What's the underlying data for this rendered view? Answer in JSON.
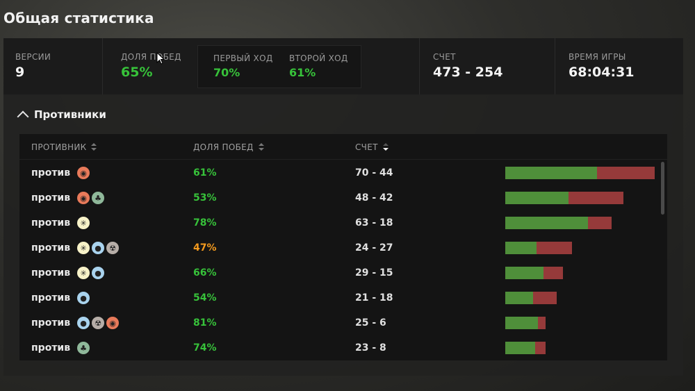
{
  "page": {
    "title": "Общая статистика"
  },
  "stats": {
    "versions": {
      "label": "ВЕРСИИ",
      "value": "9"
    },
    "win_rate": {
      "label": "ДОЛЯ ПОБЕД",
      "value": "65%"
    },
    "first_turn": {
      "label": "ПЕРВЫЙ ХОД",
      "value": "70%"
    },
    "second_turn": {
      "label": "ВТОРОЙ ХОД",
      "value": "61%"
    },
    "score": {
      "label": "СЧЕТ",
      "value": "473 - 254"
    },
    "play_time": {
      "label": "ВРЕМЯ ИГРЫ",
      "value": "68:04:31"
    }
  },
  "opponents": {
    "title": "Противники",
    "columns": {
      "opponent": "ПРОТИВНИК",
      "win_rate": "ДОЛЯ ПОБЕД",
      "score": "СЧЕТ"
    },
    "rows": [
      {
        "label": "против",
        "colors": [
          "red"
        ],
        "win_rate": "61%",
        "score": "70 - 44",
        "wins": 70,
        "losses": 44
      },
      {
        "label": "против",
        "colors": [
          "red",
          "green"
        ],
        "win_rate": "53%",
        "score": "48 - 42",
        "wins": 48,
        "losses": 42
      },
      {
        "label": "против",
        "colors": [
          "white"
        ],
        "win_rate": "78%",
        "score": "63 - 18",
        "wins": 63,
        "losses": 18
      },
      {
        "label": "против",
        "colors": [
          "white",
          "blue",
          "black"
        ],
        "win_rate": "47%",
        "score": "24 - 27",
        "wins": 24,
        "losses": 27
      },
      {
        "label": "против",
        "colors": [
          "white",
          "blue"
        ],
        "win_rate": "66%",
        "score": "29 - 15",
        "wins": 29,
        "losses": 15
      },
      {
        "label": "против",
        "colors": [
          "blue"
        ],
        "win_rate": "54%",
        "score": "21 - 18",
        "wins": 21,
        "losses": 18
      },
      {
        "label": "против",
        "colors": [
          "blue",
          "black",
          "red"
        ],
        "win_rate": "81%",
        "score": "25 - 6",
        "wins": 25,
        "losses": 6
      },
      {
        "label": "против",
        "colors": [
          "green"
        ],
        "win_rate": "74%",
        "score": "23 - 8",
        "wins": 23,
        "losses": 8
      }
    ]
  },
  "theme": {
    "good": "#37c23a",
    "bad": "#f39a1e",
    "win_bar": "#4f8f3a",
    "loss_bar": "#963a3a"
  }
}
